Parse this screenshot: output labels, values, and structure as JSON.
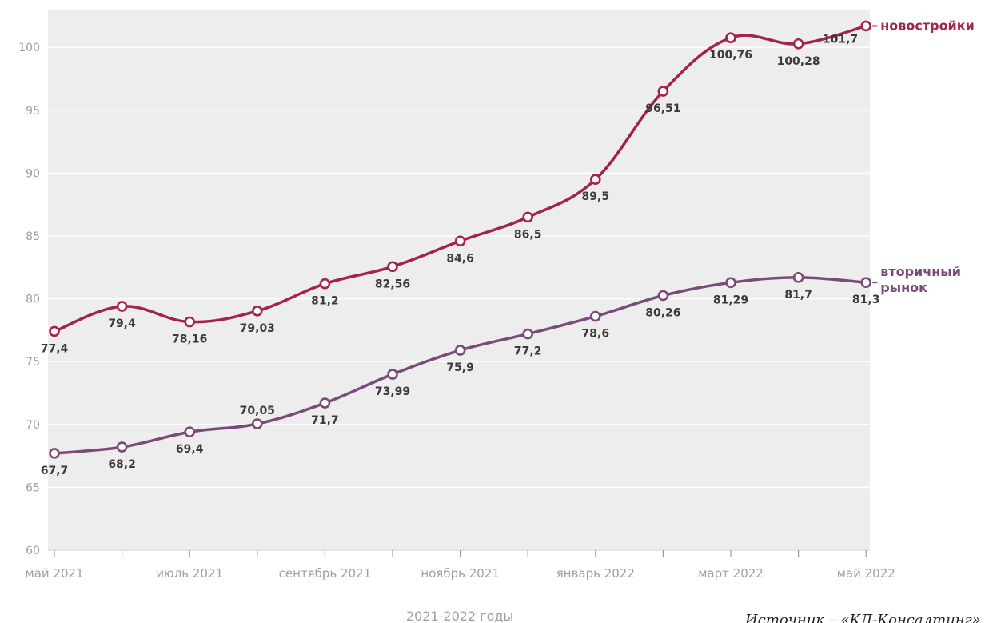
{
  "chart_data": {
    "type": "line",
    "categories": [
      "май 2021",
      "",
      "июль 2021",
      "",
      "сентябрь 2021",
      "",
      "ноябрь 2021",
      "",
      "январь 2022",
      "",
      "март 2022",
      "",
      "май 2022"
    ],
    "series": [
      {
        "name": "новостройки",
        "values": [
          77.4,
          79.4,
          78.16,
          79.03,
          81.2,
          82.56,
          84.6,
          86.5,
          89.5,
          96.51,
          100.76,
          100.28,
          101.7
        ],
        "labels": [
          "77,4",
          "79,4",
          "78,16",
          "79,03",
          "81,2",
          "82,56",
          "84,6",
          "86,5",
          "89,5",
          "96,51",
          "100,76",
          "100,28",
          "101,7"
        ],
        "color": "#a3234b",
        "label_pos": [
          "below",
          "below",
          "below",
          "below",
          "below",
          "below",
          "below",
          "below",
          "below",
          "below",
          "below",
          "below",
          "left"
        ]
      },
      {
        "name": "вторичный рынок",
        "name_lines": [
          "вторичный",
          "рынок"
        ],
        "values": [
          67.7,
          68.2,
          69.4,
          70.05,
          71.7,
          73.99,
          75.9,
          77.2,
          78.6,
          80.26,
          81.29,
          81.7,
          81.3
        ],
        "labels": [
          "67,7",
          "68,2",
          "69,4",
          "70,05",
          "71,7",
          "73,99",
          "75,9",
          "77,2",
          "78,6",
          "80,26",
          "81,29",
          "81,7",
          "81,3"
        ],
        "color": "#7a4a7a",
        "label_pos": [
          "below",
          "below",
          "below",
          "above",
          "below",
          "below",
          "below",
          "below",
          "below",
          "below",
          "below",
          "below",
          "below"
        ]
      }
    ],
    "xlabel": "2021-2022 годы",
    "ylabel": "",
    "ylim": [
      60,
      103
    ],
    "yticks": [
      60,
      65,
      70,
      75,
      80,
      85,
      90,
      95,
      100
    ],
    "grid": true,
    "legend": "right, at line ends"
  },
  "source_note": "Источник – «КД-Консалтинг»",
  "colors": {
    "plot_bg": "#ededed",
    "grid": "#ffffff",
    "axis_text": "#a0a0a0"
  }
}
